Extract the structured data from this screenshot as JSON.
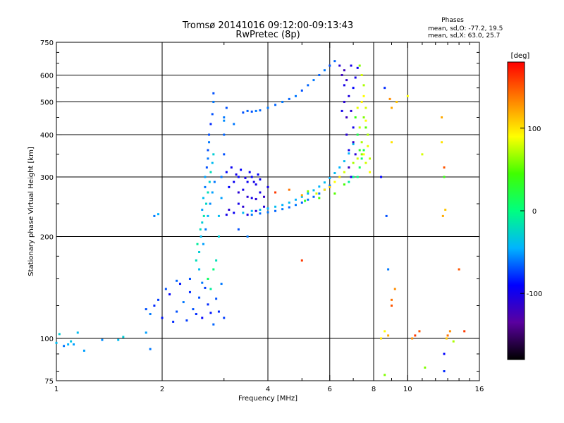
{
  "header": {
    "title_line1": "Tromsø 20141016 09:12:00-09:13:43",
    "title_line2": "RwPretec (8p)",
    "stats_title": "Phases",
    "stats_o": "mean, sd,O: -77.2, 19.5",
    "stats_x": "mean, sd,X:  63.0, 25.7"
  },
  "colorbar": {
    "unit_label": "[deg]",
    "ticks": [
      {
        "value": 100,
        "label": "100"
      },
      {
        "value": 0,
        "label": "0"
      },
      {
        "value": -100,
        "label": "-100"
      }
    ],
    "range": [
      -180,
      180
    ],
    "colors": [
      "#000000",
      "#5a00a0",
      "#0000ff",
      "#00b4ff",
      "#00ff80",
      "#40ff00",
      "#ffff00",
      "#ff8000",
      "#ff0000"
    ]
  },
  "chart_data": {
    "type": "scatter",
    "xlabel": "Frequency [MHz]",
    "ylabel": "Stationary phase Virtual Height [km]",
    "xscale": "log",
    "yscale": "log",
    "xlim": [
      1,
      16
    ],
    "ylim": [
      75,
      750
    ],
    "grid": true,
    "xticks": [
      {
        "value": 1,
        "label": "1"
      },
      {
        "value": 2,
        "label": "2"
      },
      {
        "value": 4,
        "label": "4"
      },
      {
        "value": 6,
        "label": "6"
      },
      {
        "value": 8,
        "label": "8"
      },
      {
        "value": 10,
        "label": "10"
      },
      {
        "value": 16,
        "label": "16"
      }
    ],
    "xminor": [
      3,
      5,
      7,
      9,
      11,
      12,
      13,
      14,
      15
    ],
    "yticks": [
      {
        "value": 75,
        "label": "75"
      },
      {
        "value": 100,
        "label": "100"
      },
      {
        "value": 200,
        "label": "200"
      },
      {
        "value": 300,
        "label": "300"
      },
      {
        "value": 400,
        "label": "400"
      },
      {
        "value": 500,
        "label": "500"
      },
      {
        "value": 600,
        "label": "600"
      },
      {
        "value": 750,
        "label": "750"
      }
    ],
    "ygrid": [
      100,
      200,
      300,
      400,
      500,
      600
    ],
    "yminor": [
      80,
      90,
      125,
      150,
      175,
      250,
      350,
      450,
      550,
      650,
      700
    ],
    "points": [
      [
        1.0,
        97,
        -40
      ],
      [
        1.02,
        103,
        -30
      ],
      [
        1.05,
        95,
        -60
      ],
      [
        1.08,
        96,
        -45
      ],
      [
        1.1,
        98,
        -35
      ],
      [
        1.12,
        96,
        -50
      ],
      [
        1.15,
        104,
        -40
      ],
      [
        1.2,
        92,
        -50
      ],
      [
        1.35,
        99,
        -55
      ],
      [
        1.5,
        99,
        -40
      ],
      [
        1.55,
        101,
        -30
      ],
      [
        1.8,
        104,
        -50
      ],
      [
        1.9,
        230,
        -60
      ],
      [
        1.95,
        233,
        -45
      ],
      [
        1.85,
        93,
        -60
      ],
      [
        1.8,
        122,
        -70
      ],
      [
        1.85,
        118,
        -60
      ],
      [
        1.9,
        125,
        -80
      ],
      [
        1.95,
        130,
        -75
      ],
      [
        2.0,
        115,
        -85
      ],
      [
        2.05,
        140,
        -70
      ],
      [
        2.1,
        135,
        -90
      ],
      [
        2.15,
        112,
        -80
      ],
      [
        2.2,
        120,
        -70
      ],
      [
        2.25,
        145,
        -85
      ],
      [
        2.3,
        128,
        -60
      ],
      [
        2.35,
        113,
        -75
      ],
      [
        2.4,
        137,
        -80
      ],
      [
        2.45,
        122,
        -70
      ],
      [
        2.5,
        118,
        -80
      ],
      [
        2.55,
        132,
        -70
      ],
      [
        2.6,
        115,
        -90
      ],
      [
        2.65,
        141,
        -75
      ],
      [
        2.7,
        126,
        -80
      ],
      [
        2.75,
        119,
        -85
      ],
      [
        2.8,
        110,
        -65
      ],
      [
        2.85,
        131,
        -70
      ],
      [
        2.9,
        120,
        -80
      ],
      [
        2.95,
        145,
        -60
      ],
      [
        3.0,
        115,
        -75
      ],
      [
        2.2,
        148,
        -65
      ],
      [
        2.4,
        150,
        -70
      ],
      [
        2.6,
        146,
        -60
      ],
      [
        2.55,
        160,
        -40
      ],
      [
        2.55,
        180,
        -30
      ],
      [
        2.58,
        200,
        -40
      ],
      [
        2.6,
        220,
        -30
      ],
      [
        2.6,
        240,
        -50
      ],
      [
        2.62,
        260,
        -40
      ],
      [
        2.65,
        280,
        -60
      ],
      [
        2.65,
        300,
        -50
      ],
      [
        2.68,
        320,
        -70
      ],
      [
        2.7,
        340,
        -60
      ],
      [
        2.7,
        360,
        -70
      ],
      [
        2.72,
        380,
        -60
      ],
      [
        2.72,
        400,
        -70
      ],
      [
        2.75,
        430,
        -80
      ],
      [
        2.78,
        460,
        -70
      ],
      [
        2.8,
        500,
        -60
      ],
      [
        2.8,
        530,
        -70
      ],
      [
        2.5,
        170,
        -20
      ],
      [
        2.52,
        190,
        -10
      ],
      [
        2.57,
        210,
        -20
      ],
      [
        2.63,
        230,
        -15
      ],
      [
        2.67,
        250,
        -25
      ],
      [
        2.7,
        270,
        -20
      ],
      [
        2.73,
        290,
        -30
      ],
      [
        2.75,
        310,
        -20
      ],
      [
        2.78,
        330,
        -40
      ],
      [
        2.8,
        350,
        -30
      ],
      [
        2.62,
        190,
        -50
      ],
      [
        2.66,
        210,
        -60
      ],
      [
        2.7,
        230,
        -45
      ],
      [
        2.74,
        250,
        -55
      ],
      [
        2.78,
        270,
        -50
      ],
      [
        2.82,
        290,
        -60
      ],
      [
        2.7,
        150,
        10
      ],
      [
        2.8,
        160,
        0
      ],
      [
        2.75,
        140,
        -10
      ],
      [
        2.85,
        170,
        -20
      ],
      [
        2.9,
        200,
        -30
      ],
      [
        2.9,
        230,
        -40
      ],
      [
        2.95,
        260,
        -50
      ],
      [
        2.95,
        300,
        -60
      ],
      [
        3.0,
        350,
        -70
      ],
      [
        3.0,
        400,
        -65
      ],
      [
        3.0,
        450,
        -60
      ],
      [
        3.05,
        480,
        -70
      ],
      [
        3.05,
        232,
        -100
      ],
      [
        3.1,
        240,
        -110
      ],
      [
        3.2,
        235,
        -95
      ],
      [
        3.3,
        250,
        -100
      ],
      [
        3.4,
        245,
        -110
      ],
      [
        3.5,
        232,
        -105
      ],
      [
        3.6,
        260,
        -100
      ],
      [
        3.7,
        238,
        -110
      ],
      [
        3.8,
        270,
        -100
      ],
      [
        3.9,
        245,
        -110
      ],
      [
        4.0,
        280,
        -100
      ],
      [
        3.1,
        280,
        -90
      ],
      [
        3.2,
        290,
        -95
      ],
      [
        3.3,
        300,
        -90
      ],
      [
        3.4,
        275,
        -100
      ],
      [
        3.5,
        290,
        -95
      ],
      [
        3.6,
        300,
        -90
      ],
      [
        3.7,
        285,
        -100
      ],
      [
        3.8,
        295,
        -95
      ],
      [
        3.05,
        310,
        -90
      ],
      [
        3.15,
        320,
        -95
      ],
      [
        3.25,
        305,
        -100
      ],
      [
        3.35,
        315,
        -90
      ],
      [
        3.45,
        298,
        -100
      ],
      [
        3.55,
        310,
        -95
      ],
      [
        3.65,
        290,
        -100
      ],
      [
        3.75,
        305,
        -90
      ],
      [
        3.3,
        270,
        -110
      ],
      [
        3.5,
        262,
        -110
      ],
      [
        3.7,
        258,
        -110
      ],
      [
        3.9,
        262,
        -115
      ],
      [
        3.2,
        430,
        -60
      ],
      [
        3.4,
        465,
        -70
      ],
      [
        3.5,
        470,
        -65
      ],
      [
        3.6,
        468,
        -70
      ],
      [
        3.7,
        470,
        -60
      ],
      [
        3.8,
        472,
        -65
      ],
      [
        4.0,
        480,
        -60
      ],
      [
        4.2,
        490,
        -65
      ],
      [
        4.4,
        500,
        -60
      ],
      [
        4.6,
        510,
        -65
      ],
      [
        4.8,
        520,
        -60
      ],
      [
        5.0,
        540,
        -70
      ],
      [
        5.2,
        560,
        -65
      ],
      [
        5.4,
        580,
        -60
      ],
      [
        5.6,
        600,
        -65
      ],
      [
        5.8,
        620,
        -60
      ],
      [
        6.0,
        640,
        -70
      ],
      [
        6.2,
        660,
        -65
      ],
      [
        3.5,
        200,
        -60
      ],
      [
        3.3,
        210,
        -70
      ],
      [
        3.0,
        440,
        -55
      ],
      [
        3.4,
        235,
        -40
      ],
      [
        3.6,
        238,
        -45
      ],
      [
        3.8,
        240,
        -40
      ],
      [
        4.0,
        242,
        -45
      ],
      [
        4.2,
        245,
        -40
      ],
      [
        4.4,
        248,
        -45
      ],
      [
        4.6,
        252,
        -40
      ],
      [
        4.8,
        257,
        -45
      ],
      [
        5.0,
        262,
        -40
      ],
      [
        5.2,
        268,
        -45
      ],
      [
        5.4,
        274,
        -40
      ],
      [
        5.6,
        281,
        -45
      ],
      [
        5.8,
        289,
        -40
      ],
      [
        6.0,
        298,
        -45
      ],
      [
        6.2,
        308,
        -40
      ],
      [
        6.4,
        320,
        -45
      ],
      [
        6.6,
        334,
        -40
      ],
      [
        6.8,
        352,
        -45
      ],
      [
        7.0,
        375,
        -40
      ],
      [
        3.6,
        232,
        -60
      ],
      [
        3.8,
        234,
        -65
      ],
      [
        4.0,
        236,
        -60
      ],
      [
        4.2,
        238,
        -65
      ],
      [
        4.4,
        241,
        -60
      ],
      [
        4.6,
        244,
        -65
      ],
      [
        4.8,
        248,
        -60
      ],
      [
        5.0,
        252,
        -65
      ],
      [
        5.2,
        257,
        -60
      ],
      [
        5.4,
        262,
        -65
      ],
      [
        5.6,
        268,
        -60
      ],
      [
        5.8,
        275,
        -65
      ],
      [
        6.0,
        283,
        -60
      ],
      [
        4.2,
        270,
        160
      ],
      [
        4.6,
        275,
        140
      ],
      [
        5.0,
        265,
        120
      ],
      [
        5.2,
        272,
        60
      ],
      [
        5.5,
        268,
        80
      ],
      [
        5.8,
        275,
        100
      ],
      [
        6.0,
        280,
        110
      ],
      [
        6.2,
        290,
        90
      ],
      [
        6.4,
        300,
        100
      ],
      [
        6.6,
        310,
        80
      ],
      [
        6.8,
        320,
        90
      ],
      [
        7.0,
        330,
        70
      ],
      [
        7.2,
        340,
        80
      ],
      [
        7.4,
        350,
        60
      ],
      [
        5.0,
        170,
        160
      ],
      [
        5.1,
        255,
        30
      ],
      [
        5.6,
        260,
        40
      ],
      [
        6.2,
        268,
        50
      ],
      [
        6.6,
        285,
        45
      ],
      [
        6.4,
        640,
        -110
      ],
      [
        6.5,
        600,
        -120
      ],
      [
        6.6,
        560,
        -100
      ],
      [
        6.6,
        500,
        -110
      ],
      [
        6.7,
        450,
        -120
      ],
      [
        6.7,
        400,
        -110
      ],
      [
        6.8,
        360,
        -100
      ],
      [
        6.8,
        320,
        -115
      ],
      [
        6.9,
        300,
        -100
      ],
      [
        6.6,
        620,
        -120
      ],
      [
        6.7,
        580,
        -115
      ],
      [
        6.8,
        520,
        -105
      ],
      [
        6.9,
        470,
        -110
      ],
      [
        7.0,
        420,
        -100
      ],
      [
        7.0,
        380,
        -115
      ],
      [
        7.1,
        350,
        -110
      ],
      [
        7.2,
        630,
        -95
      ],
      [
        7.1,
        590,
        -100
      ],
      [
        7.0,
        550,
        -90
      ],
      [
        6.9,
        640,
        -100
      ],
      [
        6.5,
        470,
        -100
      ],
      [
        7.3,
        640,
        60
      ],
      [
        7.4,
        600,
        80
      ],
      [
        7.5,
        560,
        70
      ],
      [
        7.5,
        520,
        90
      ],
      [
        7.6,
        480,
        80
      ],
      [
        7.6,
        440,
        90
      ],
      [
        7.7,
        400,
        70
      ],
      [
        7.7,
        370,
        85
      ],
      [
        7.8,
        340,
        75
      ],
      [
        7.8,
        310,
        90
      ],
      [
        7.4,
        500,
        95
      ],
      [
        7.5,
        450,
        60
      ],
      [
        7.6,
        420,
        50
      ],
      [
        7.2,
        480,
        85
      ],
      [
        7.3,
        420,
        75
      ],
      [
        7.4,
        380,
        70
      ],
      [
        7.5,
        350,
        90
      ],
      [
        7.6,
        330,
        80
      ],
      [
        7.1,
        450,
        40
      ],
      [
        7.2,
        400,
        20
      ],
      [
        7.3,
        360,
        30
      ],
      [
        7.2,
        300,
        0
      ],
      [
        7.3,
        320,
        10
      ],
      [
        7.4,
        340,
        5
      ],
      [
        7.5,
        360,
        15
      ],
      [
        6.8,
        290,
        -10
      ],
      [
        7.0,
        300,
        0
      ],
      [
        8.4,
        300,
        -90
      ],
      [
        8.4,
        100,
        100
      ],
      [
        8.6,
        78,
        60
      ],
      [
        8.6,
        550,
        -80
      ],
      [
        8.9,
        510,
        130
      ],
      [
        9.0,
        480,
        120
      ],
      [
        9.0,
        380,
        100
      ],
      [
        8.7,
        230,
        -70
      ],
      [
        8.8,
        160,
        -60
      ],
      [
        8.6,
        105,
        90
      ],
      [
        8.8,
        102,
        120
      ],
      [
        9.0,
        130,
        140
      ],
      [
        9.3,
        500,
        110
      ],
      [
        10.0,
        520,
        90
      ],
      [
        10.3,
        100,
        130
      ],
      [
        10.5,
        102,
        160
      ],
      [
        10.8,
        105,
        150
      ],
      [
        11.0,
        350,
        80
      ],
      [
        11.2,
        82,
        60
      ],
      [
        12.5,
        450,
        120
      ],
      [
        12.5,
        380,
        100
      ],
      [
        12.7,
        320,
        150
      ],
      [
        12.7,
        300,
        40
      ],
      [
        12.6,
        230,
        120
      ],
      [
        12.8,
        240,
        110
      ],
      [
        12.9,
        100,
        110
      ],
      [
        13.0,
        102,
        140
      ],
      [
        13.2,
        105,
        130
      ],
      [
        13.5,
        98,
        70
      ],
      [
        12.7,
        80,
        -80
      ],
      [
        12.7,
        90,
        -90
      ],
      [
        14.0,
        160,
        150
      ],
      [
        14.5,
        105,
        160
      ],
      [
        9.0,
        125,
        150
      ],
      [
        9.2,
        140,
        130
      ]
    ]
  }
}
